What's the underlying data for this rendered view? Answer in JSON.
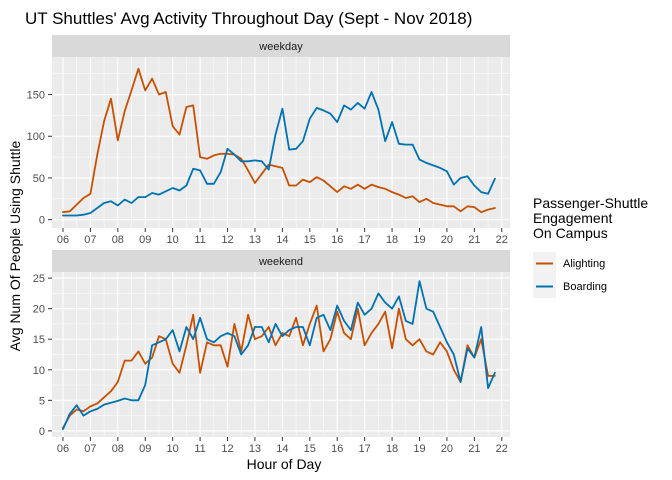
{
  "chart_data": {
    "type": "line",
    "title": "UT Shuttles' Avg Activity Throughout Day (Sept - Nov 2018)",
    "xlabel": "Hour of Day",
    "ylabel": "Avg Num Of People Using Shuttle",
    "x_ticks": [
      "06",
      "07",
      "08",
      "09",
      "10",
      "11",
      "12",
      "13",
      "14",
      "15",
      "16",
      "17",
      "18",
      "19",
      "20",
      "21",
      "22"
    ],
    "xlim": [
      5.6,
      22.3
    ],
    "grid": true,
    "legend": {
      "title_lines": [
        "Passenger-Shuttle",
        "Engagement",
        "On Campus"
      ],
      "placement": "right",
      "entries": [
        "Alighting",
        "Boarding"
      ]
    },
    "colors": {
      "Alighting": "#c65102",
      "Boarding": "#0072b2"
    },
    "panels": [
      {
        "label": "weekday",
        "ylim": [
          -10,
          195
        ],
        "y_ticks": [
          0,
          50,
          100,
          150
        ],
        "series": [
          {
            "name": "Alighting",
            "x": [
              6.0,
              6.25,
              6.5,
              6.75,
              7.0,
              7.25,
              7.5,
              7.75,
              8.0,
              8.25,
              8.5,
              8.75,
              9.0,
              9.25,
              9.5,
              9.75,
              10.0,
              10.25,
              10.5,
              10.75,
              11.0,
              11.25,
              11.5,
              11.75,
              12.0,
              12.25,
              12.5,
              12.75,
              13.0,
              13.25,
              13.5,
              13.75,
              14.0,
              14.25,
              14.5,
              14.75,
              15.0,
              15.25,
              15.5,
              15.75,
              16.0,
              16.25,
              16.5,
              16.75,
              17.0,
              17.25,
              17.5,
              17.75,
              18.0,
              18.25,
              18.5,
              18.75,
              19.0,
              19.25,
              19.5,
              19.75,
              20.0,
              20.25,
              20.5,
              20.75,
              21.0,
              21.25,
              21.5,
              21.75
            ],
            "y": [
              9,
              10,
              18,
              26,
              31,
              78,
              118,
              145,
              95,
              130,
              155,
              181,
              155,
              169,
              150,
              153,
              112,
              102,
              135,
              137,
              75,
              73,
              77,
              79,
              79,
              78,
              73,
              59,
              44,
              55,
              66,
              64,
              62,
              41,
              41,
              48,
              45,
              51,
              47,
              40,
              33,
              40,
              37,
              42,
              37,
              42,
              39,
              37,
              33,
              30,
              26,
              28,
              21,
              25,
              20,
              18,
              16,
              16,
              10,
              16,
              15,
              9,
              12,
              14
            ]
          },
          {
            "name": "Boarding",
            "x": [
              6.0,
              6.25,
              6.5,
              6.75,
              7.0,
              7.25,
              7.5,
              7.75,
              8.0,
              8.25,
              8.5,
              8.75,
              9.0,
              9.25,
              9.5,
              9.75,
              10.0,
              10.25,
              10.5,
              10.75,
              11.0,
              11.25,
              11.5,
              11.75,
              12.0,
              12.25,
              12.5,
              12.75,
              13.0,
              13.25,
              13.5,
              13.75,
              14.0,
              14.25,
              14.5,
              14.75,
              15.0,
              15.25,
              15.5,
              15.75,
              16.0,
              16.25,
              16.5,
              16.75,
              17.0,
              17.25,
              17.5,
              17.75,
              18.0,
              18.25,
              18.5,
              18.75,
              19.0,
              19.25,
              19.5,
              19.75,
              20.0,
              20.25,
              20.5,
              20.75,
              21.0,
              21.25,
              21.5,
              21.75
            ],
            "y": [
              5,
              5,
              5,
              6,
              8,
              14,
              20,
              22,
              17,
              24,
              20,
              27,
              27,
              32,
              30,
              34,
              38,
              35,
              41,
              61,
              59,
              43,
              43,
              57,
              85,
              78,
              70,
              70,
              71,
              70,
              60,
              102,
              133,
              84,
              85,
              94,
              121,
              134,
              131,
              127,
              117,
              137,
              132,
              140,
              133,
              153,
              132,
              94,
              117,
              91,
              90,
              90,
              72,
              68,
              65,
              62,
              58,
              42,
              50,
              52,
              41,
              33,
              31,
              49
            ]
          }
        ]
      },
      {
        "label": "weekend",
        "ylim": [
          -1,
          26
        ],
        "y_ticks": [
          0,
          5,
          10,
          15,
          20,
          25
        ],
        "series": [
          {
            "name": "Alighting",
            "x": [
              6.0,
              6.25,
              6.5,
              6.75,
              7.0,
              7.25,
              7.5,
              7.75,
              8.0,
              8.25,
              8.5,
              8.75,
              9.0,
              9.25,
              9.5,
              9.75,
              10.0,
              10.25,
              10.5,
              10.75,
              11.0,
              11.25,
              11.5,
              11.75,
              12.0,
              12.25,
              12.5,
              12.75,
              13.0,
              13.25,
              13.5,
              13.75,
              14.0,
              14.25,
              14.5,
              14.75,
              15.0,
              15.25,
              15.5,
              15.75,
              16.0,
              16.25,
              16.5,
              16.75,
              17.0,
              17.25,
              17.5,
              17.75,
              18.0,
              18.25,
              18.5,
              18.75,
              19.0,
              19.25,
              19.5,
              19.75,
              20.0,
              20.25,
              20.5,
              20.75,
              21.0,
              21.25,
              21.5,
              21.75
            ],
            "y": [
              0.5,
              2.5,
              3.5,
              3.2,
              4,
              4.5,
              5.5,
              6.5,
              8,
              11.5,
              11.5,
              13,
              11,
              12,
              15.5,
              15,
              11,
              9.5,
              14,
              19,
              9.5,
              14.5,
              14,
              14,
              10.5,
              17.5,
              13,
              19,
              15,
              15.5,
              17,
              14,
              16,
              15.5,
              18.5,
              14,
              17.5,
              20.5,
              13,
              15,
              19.5,
              16,
              15,
              20,
              14,
              16,
              17.5,
              19.5,
              13.5,
              20,
              15,
              14,
              15,
              13,
              12.5,
              14.5,
              13,
              10,
              8,
              14,
              12,
              15,
              9,
              9
            ]
          },
          {
            "name": "Boarding",
            "x": [
              6.0,
              6.25,
              6.5,
              6.75,
              7.0,
              7.25,
              7.5,
              7.75,
              8.0,
              8.25,
              8.5,
              8.75,
              9.0,
              9.25,
              9.5,
              9.75,
              10.0,
              10.25,
              10.5,
              10.75,
              11.0,
              11.25,
              11.5,
              11.75,
              12.0,
              12.25,
              12.5,
              12.75,
              13.0,
              13.25,
              13.5,
              13.75,
              14.0,
              14.25,
              14.5,
              14.75,
              15.0,
              15.25,
              15.5,
              15.75,
              16.0,
              16.25,
              16.5,
              16.75,
              17.0,
              17.25,
              17.5,
              17.75,
              18.0,
              18.25,
              18.5,
              18.75,
              19.0,
              19.25,
              19.5,
              19.75,
              20.0,
              20.25,
              20.5,
              20.75,
              21.0,
              21.25,
              21.5,
              21.75
            ],
            "y": [
              0.3,
              2.8,
              4.2,
              2.5,
              3.2,
              3.6,
              4.3,
              4.6,
              4.9,
              5.3,
              5,
              5,
              7.5,
              14,
              14.5,
              15,
              16.5,
              13,
              17,
              15,
              18.5,
              15,
              14.5,
              15.5,
              16,
              15.5,
              12.5,
              14,
              17,
              17,
              14.5,
              17.5,
              15.5,
              16.5,
              17,
              17,
              14,
              18.5,
              19,
              16.5,
              20.5,
              18,
              16.5,
              21,
              19,
              20,
              22.5,
              21,
              20,
              22,
              18,
              17.5,
              24.5,
              20,
              19.5,
              17,
              14.5,
              12.5,
              8,
              13.5,
              12,
              17,
              7,
              9.5
            ]
          }
        ]
      }
    ]
  }
}
